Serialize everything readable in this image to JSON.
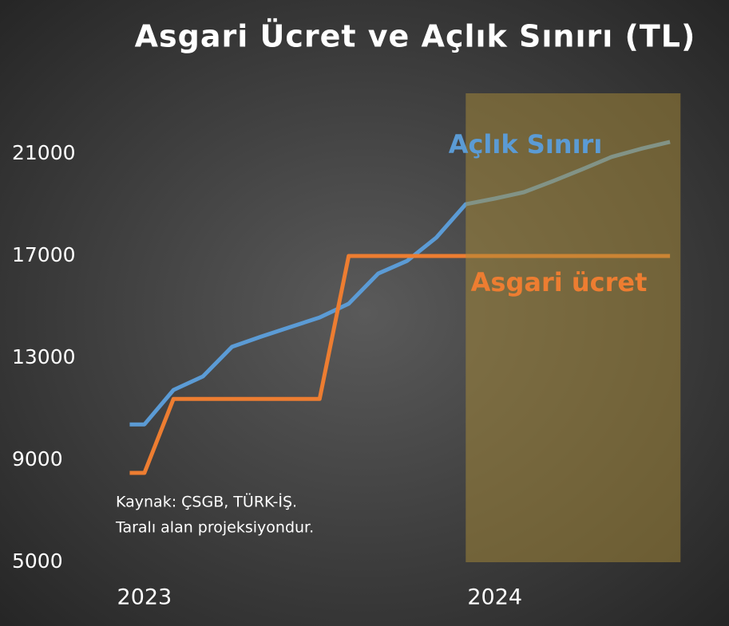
{
  "chart_data": {
    "type": "line",
    "title": "Asgari Ücret ve Açlık Sınırı (TL)",
    "x": [
      2022.958,
      2023,
      2023.083,
      2023.167,
      2023.25,
      2023.333,
      2023.417,
      2023.5,
      2023.583,
      2023.667,
      2023.75,
      2023.833,
      2023.917,
      2024,
      2024.083,
      2024.167,
      2024.25,
      2024.333,
      2024.417,
      2024.5
    ],
    "series": [
      {
        "name": "Açlık Sınırı",
        "color": "#5b9bd5",
        "values": [
          10400,
          10400,
          11750,
          12280,
          13440,
          13840,
          14220,
          14590,
          15130,
          16310,
          16810,
          17720,
          19030,
          19250,
          19500,
          19940,
          20400,
          20880,
          21200,
          21470
        ]
      },
      {
        "name": "Asgari ücret",
        "color": "#ed7d31",
        "values": [
          8500,
          8500,
          11400,
          11400,
          11400,
          11400,
          11400,
          11400,
          17000,
          17000,
          17000,
          17000,
          17000,
          17000,
          17000,
          17000,
          17000,
          17000,
          17000,
          17000
        ]
      }
    ],
    "projection_range": [
      2023.917,
      2024.53
    ],
    "xlim": [
      2022.9,
      2024.6
    ],
    "xticks": [
      2023,
      2024
    ],
    "ylim": [
      5000,
      23500
    ],
    "yticks": [
      5000,
      9000,
      13000,
      17000,
      21000
    ],
    "grid": false,
    "annotations": [
      "Kaynak: ÇSGB, TÜRK-İŞ.",
      "Taralı alan projeksiyondur."
    ]
  }
}
